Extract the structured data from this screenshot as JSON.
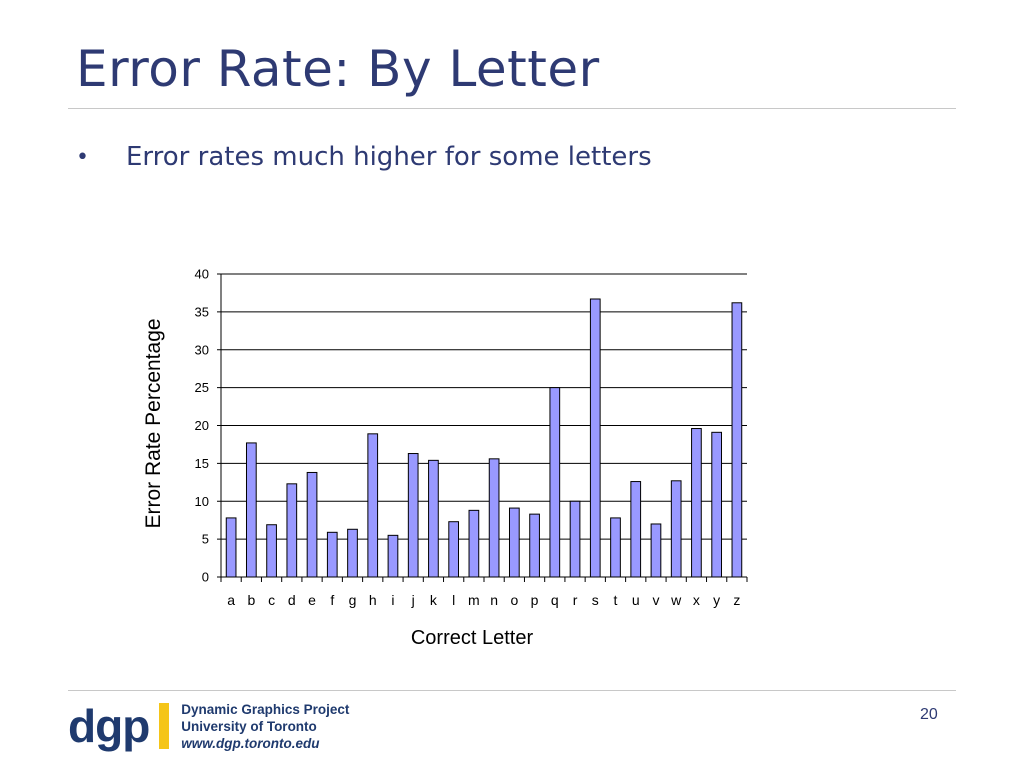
{
  "slide": {
    "title": "Error Rate: By Letter",
    "bullet": "Error rates much higher for some letters",
    "page_number": "20"
  },
  "footer": {
    "logo_text": "dgp",
    "line1": "Dynamic Graphics Project",
    "line2": "University of Toronto",
    "line3": "www.dgp.toronto.edu"
  },
  "colors": {
    "title": "#2e3a73",
    "bar_fill": "#9999ff",
    "bar_stroke": "#000000",
    "logo_blue": "#1f3a6e",
    "logo_yellow": "#f5c518"
  },
  "chart_data": {
    "type": "bar",
    "title": "",
    "xlabel": "Correct Letter",
    "ylabel": "Error Rate Percentage",
    "ylim": [
      0,
      40
    ],
    "yticks": [
      0,
      5,
      10,
      15,
      20,
      25,
      30,
      35,
      40
    ],
    "grid": true,
    "categories": [
      "a",
      "b",
      "c",
      "d",
      "e",
      "f",
      "g",
      "h",
      "i",
      "j",
      "k",
      "l",
      "m",
      "n",
      "o",
      "p",
      "q",
      "r",
      "s",
      "t",
      "u",
      "v",
      "w",
      "x",
      "y",
      "z"
    ],
    "values": [
      7.8,
      17.7,
      6.9,
      12.3,
      13.8,
      5.9,
      6.3,
      18.9,
      5.5,
      16.3,
      15.4,
      7.3,
      8.8,
      15.6,
      9.1,
      8.3,
      25.0,
      10.0,
      36.7,
      7.8,
      12.6,
      7.0,
      12.7,
      19.6,
      19.1,
      36.2
    ]
  }
}
